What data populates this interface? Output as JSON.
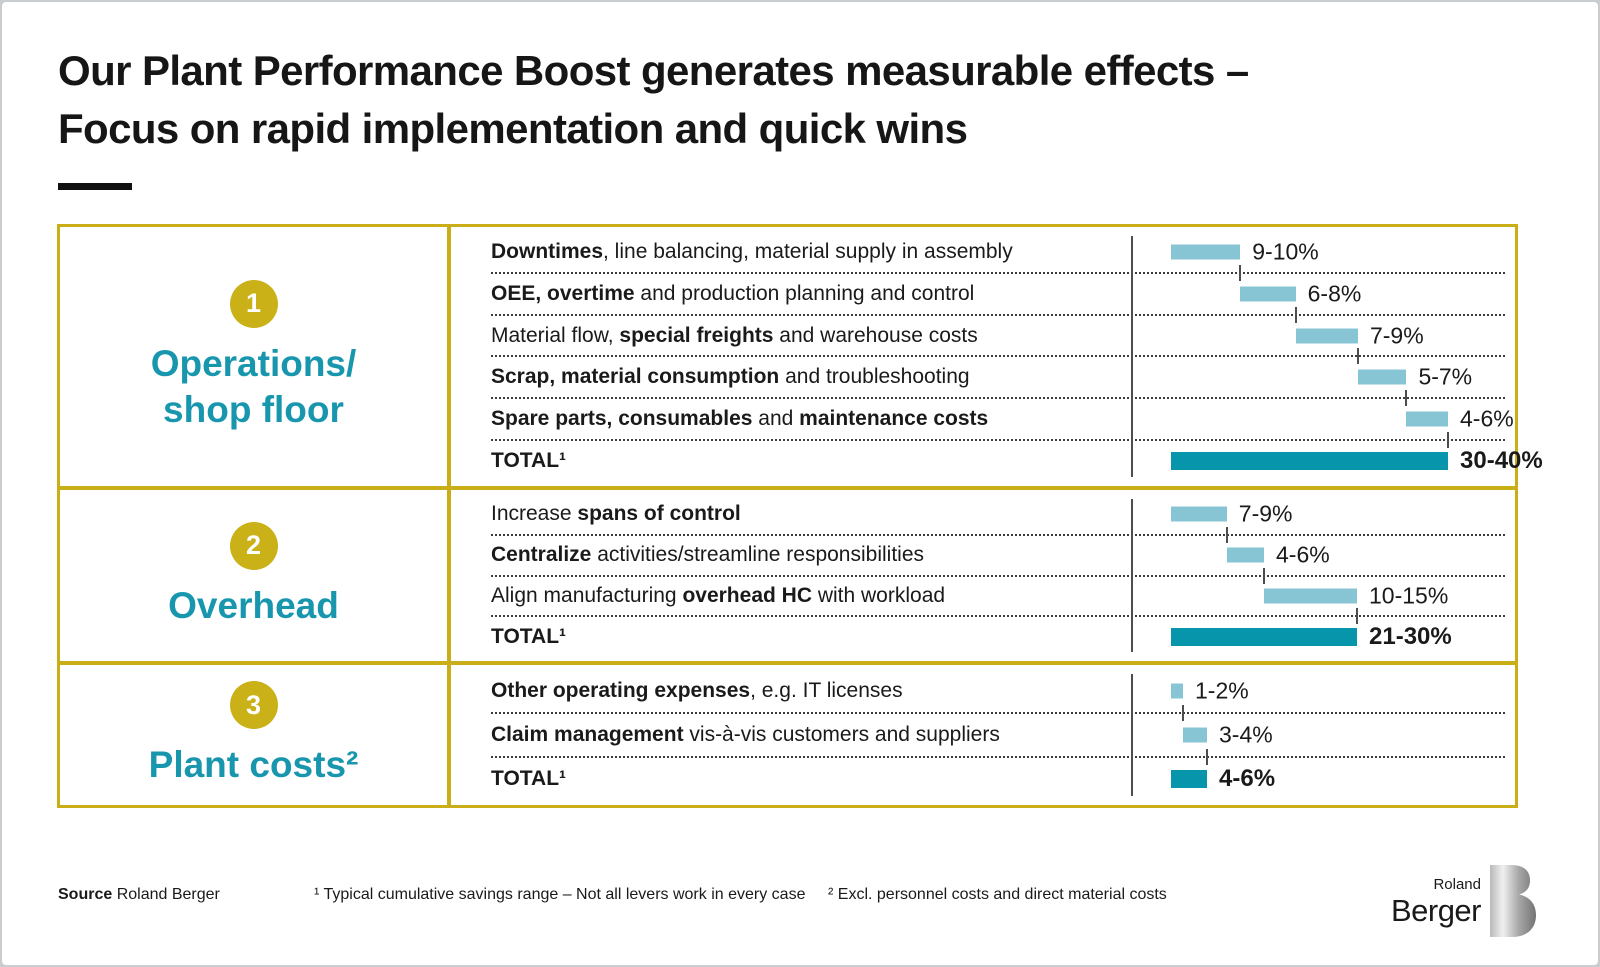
{
  "title": {
    "line1": "Our Plant Performance Boost generates measurable effects –",
    "line2": "Focus on rapid implementation and quick wins"
  },
  "colors": {
    "accent_gold": "#C9AE18",
    "category_teal": "#1896AE",
    "bar_light_blue": "#87C4D4",
    "bar_dark_teal": "#0795AC",
    "axis_gray": "#4d4d4d"
  },
  "sections": [
    {
      "number": "1",
      "label_lines": [
        "Operations/",
        "shop floor"
      ],
      "rows": [
        {
          "segments": [
            [
              "Downtimes",
              true
            ],
            [
              ", line balancing, material supply in assembly",
              false
            ]
          ],
          "pct": "9-10%",
          "min": 9,
          "max": 10
        },
        {
          "segments": [
            [
              "OEE, overtime",
              true
            ],
            [
              " and production planning and control",
              false
            ]
          ],
          "pct": "6-8%",
          "min": 6,
          "max": 8
        },
        {
          "segments": [
            [
              "Material flow, ",
              false
            ],
            [
              "special freights",
              true
            ],
            [
              " and warehouse costs",
              false
            ]
          ],
          "pct": "7-9%",
          "min": 7,
          "max": 9
        },
        {
          "segments": [
            [
              "Scrap, material consumption",
              true
            ],
            [
              " and troubleshooting",
              false
            ]
          ],
          "pct": "5-7%",
          "min": 5,
          "max": 7
        },
        {
          "segments": [
            [
              "Spare parts, consumables",
              true
            ],
            [
              " and ",
              false
            ],
            [
              "maintenance costs",
              true
            ]
          ],
          "pct": "4-6%",
          "min": 4,
          "max": 6
        }
      ],
      "total": {
        "label": "TOTAL¹",
        "pct": "30-40%",
        "min": 30,
        "max": 40
      }
    },
    {
      "number": "2",
      "label_lines": [
        "Overhead"
      ],
      "rows": [
        {
          "segments": [
            [
              "Increase ",
              false
            ],
            [
              "spans of control",
              true
            ]
          ],
          "pct": "7-9%",
          "min": 7,
          "max": 9
        },
        {
          "segments": [
            [
              "Centralize",
              true
            ],
            [
              " activities/streamline responsibilities",
              false
            ]
          ],
          "pct": "4-6%",
          "min": 4,
          "max": 6
        },
        {
          "segments": [
            [
              "Align manufacturing ",
              false
            ],
            [
              "overhead HC",
              true
            ],
            [
              " with workload",
              false
            ]
          ],
          "pct": "10-15%",
          "min": 10,
          "max": 15
        }
      ],
      "total": {
        "label": "TOTAL¹",
        "pct": "21-30%",
        "min": 21,
        "max": 30
      }
    },
    {
      "number": "3",
      "label_lines": [
        "Plant costs²"
      ],
      "rows": [
        {
          "segments": [
            [
              "Other operating expenses",
              true
            ],
            [
              ", e.g. IT licenses",
              false
            ]
          ],
          "pct": "1-2%",
          "min": 1,
          "max": 2
        },
        {
          "segments": [
            [
              "Claim management",
              true
            ],
            [
              " vis-à-vis customers and suppliers",
              false
            ]
          ],
          "pct": "3-4%",
          "min": 3,
          "max": 4
        }
      ],
      "total": {
        "label": "TOTAL¹",
        "pct": "4-6%",
        "min": 4,
        "max": 6
      }
    }
  ],
  "footer": {
    "source_label": "Source",
    "source_text": "Roland Berger",
    "footnote1": "¹ Typical cumulative savings range – Not all levers work in every case",
    "footnote2": "² Excl. personnel costs and direct material costs"
  },
  "logo": {
    "line1": "Roland",
    "line2": "Berger"
  },
  "chart_data": [
    {
      "type": "bar",
      "subtype": "waterfall",
      "group": "Operations/shop floor",
      "categories": [
        "Downtimes, line balancing, material supply in assembly",
        "OEE, overtime and production planning and control",
        "Material flow, special freights and warehouse costs",
        "Scrap, material consumption and troubleshooting",
        "Spare parts, consumables and maintenance costs"
      ],
      "ranges_pct": [
        [
          9,
          10
        ],
        [
          6,
          8
        ],
        [
          7,
          9
        ],
        [
          5,
          7
        ],
        [
          4,
          6
        ]
      ],
      "total_label": "TOTAL¹",
      "total_pct": [
        30,
        40
      ],
      "unit": "% savings",
      "legend": "off",
      "orientation": "horizontal"
    },
    {
      "type": "bar",
      "subtype": "waterfall",
      "group": "Overhead",
      "categories": [
        "Increase spans of control",
        "Centralize activities/streamline responsibilities",
        "Align manufacturing overhead HC with workload"
      ],
      "ranges_pct": [
        [
          7,
          9
        ],
        [
          4,
          6
        ],
        [
          10,
          15
        ]
      ],
      "total_label": "TOTAL¹",
      "total_pct": [
        21,
        30
      ],
      "unit": "% savings",
      "legend": "off",
      "orientation": "horizontal"
    },
    {
      "type": "bar",
      "subtype": "waterfall",
      "group": "Plant costs²",
      "categories": [
        "Other operating expenses, e.g. IT licenses",
        "Claim management vis-à-vis customers and suppliers"
      ],
      "ranges_pct": [
        [
          1,
          2
        ],
        [
          3,
          4
        ]
      ],
      "total_label": "TOTAL¹",
      "total_pct": [
        4,
        6
      ],
      "unit": "% savings",
      "legend": "off",
      "orientation": "horizontal"
    }
  ]
}
